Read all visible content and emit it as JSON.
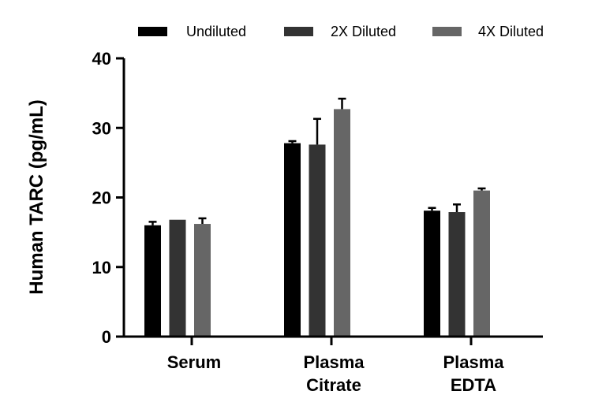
{
  "chart_data": {
    "type": "bar",
    "categories": [
      [
        "Serum"
      ],
      [
        "Plasma",
        "Citrate"
      ],
      [
        "Plasma",
        "EDTA"
      ]
    ],
    "series": [
      {
        "name": "Undiluted",
        "color": "#000000",
        "values": [
          16.0,
          27.8,
          18.1
        ],
        "errors": [
          0.5,
          0.3,
          0.4
        ]
      },
      {
        "name": "2X Diluted",
        "color": "#333333",
        "values": [
          16.8,
          27.6,
          17.9
        ],
        "errors": [
          0.0,
          3.7,
          1.1
        ]
      },
      {
        "name": "4X Diluted",
        "color": "#666666",
        "values": [
          16.2,
          32.7,
          21.0
        ],
        "errors": [
          0.8,
          1.5,
          0.3
        ]
      }
    ],
    "ylabel": "Human TARC (pg/mL)",
    "xlabel": "",
    "ylim": [
      0,
      40
    ],
    "yticks": [
      0,
      10,
      20,
      30,
      40
    ],
    "legend_position": "top",
    "grid": false
  }
}
